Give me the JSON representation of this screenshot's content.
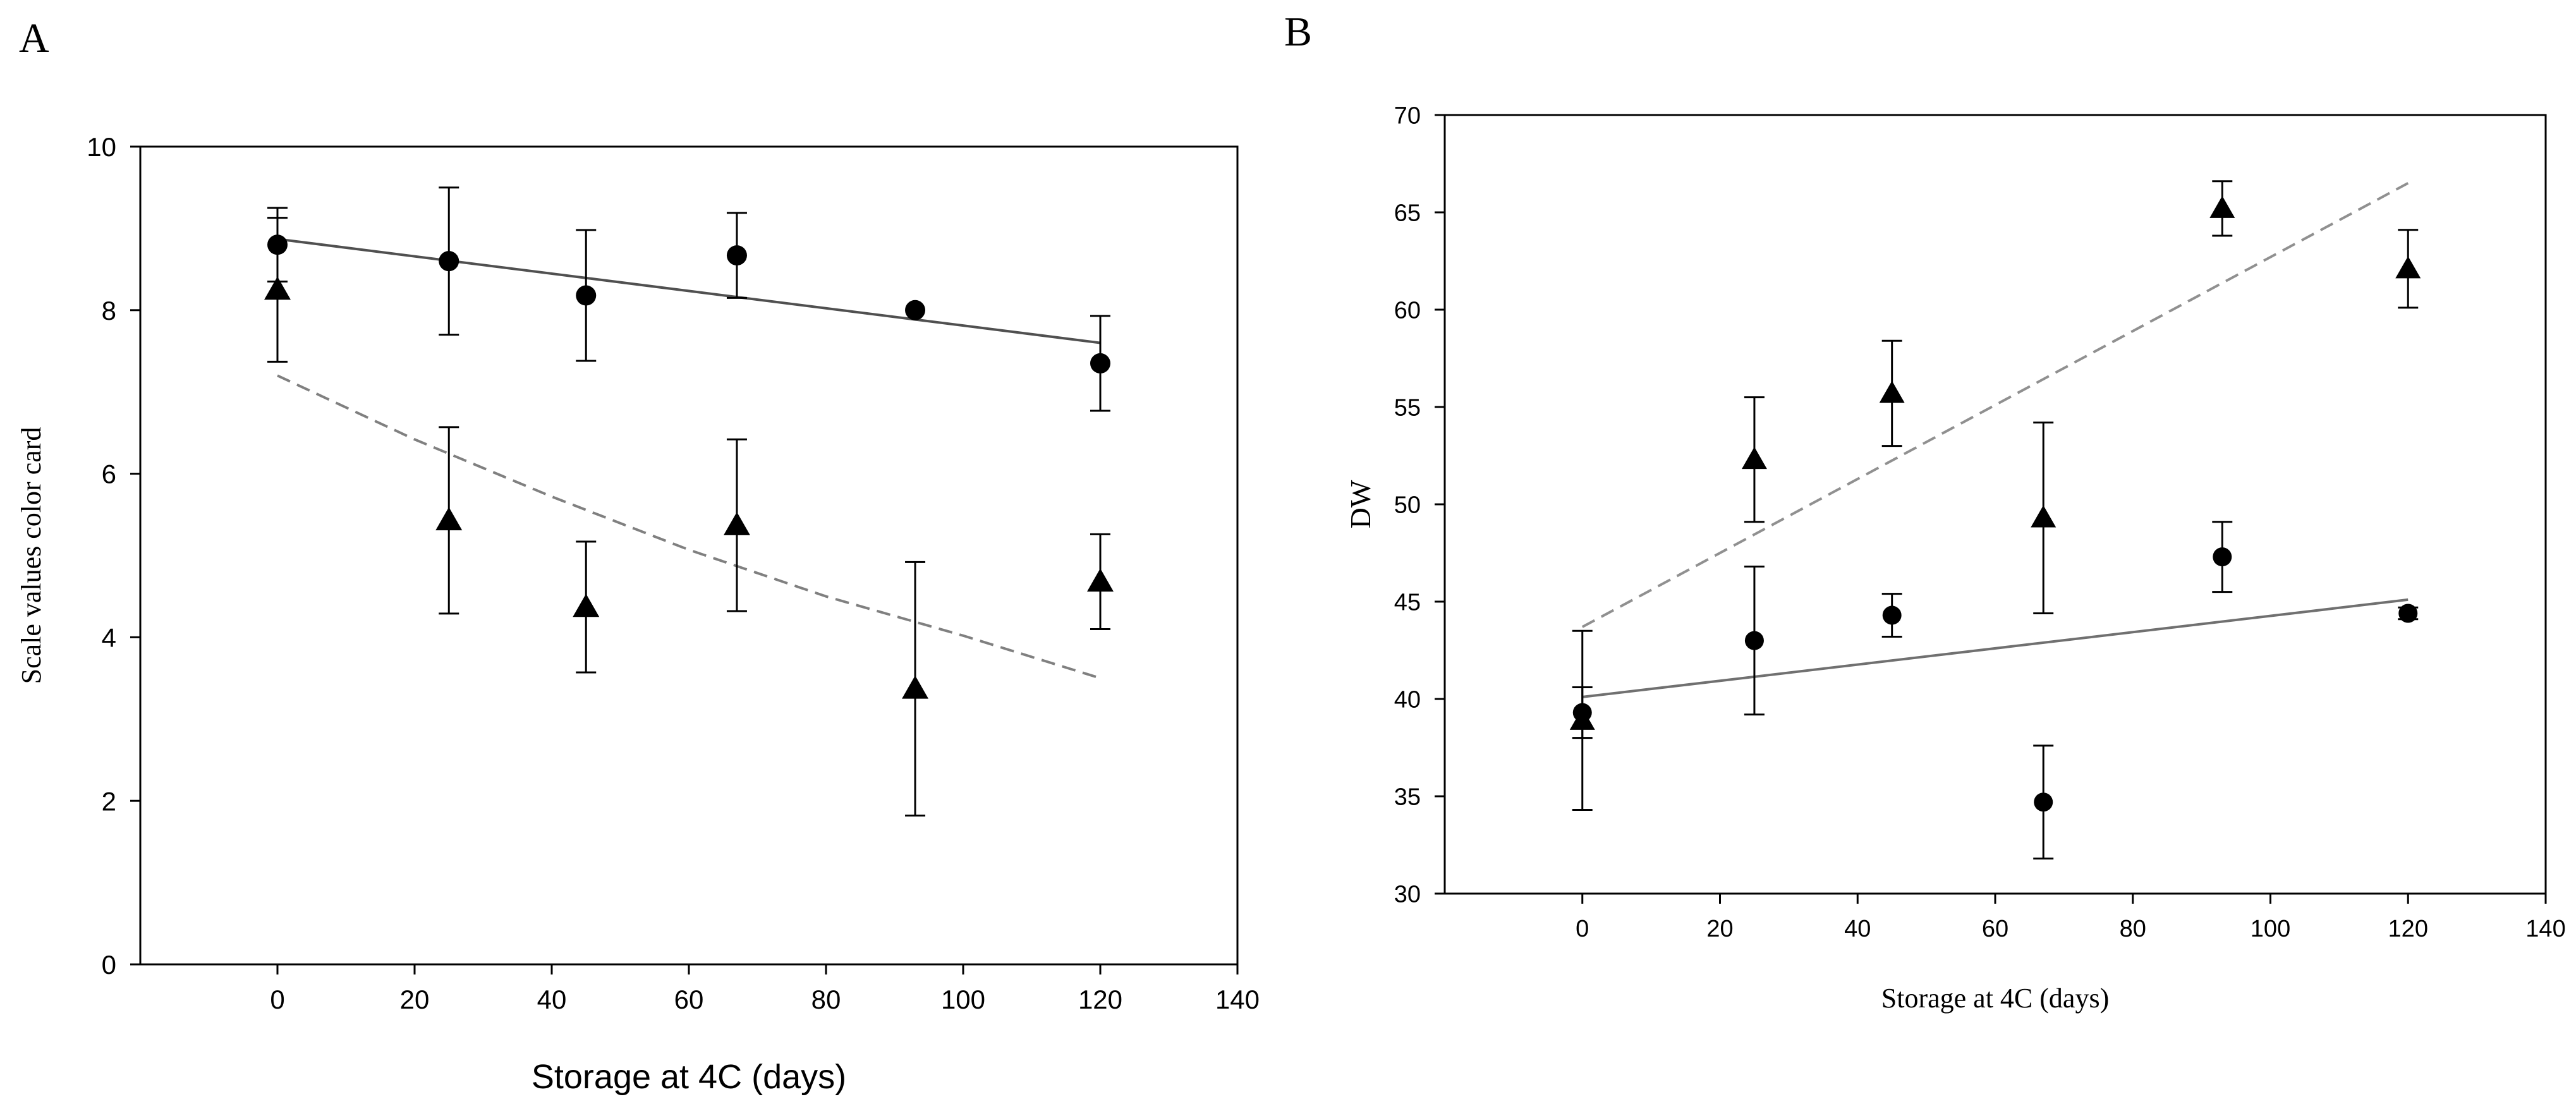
{
  "chart_data": [
    {
      "panel_label": "A",
      "type": "scatter",
      "title": "",
      "xlabel": "Storage at 4C (days)",
      "ylabel": "Scale values color card",
      "xlim": [
        -20,
        140
      ],
      "ylim": [
        0,
        10
      ],
      "xticks": [
        0,
        20,
        40,
        60,
        80,
        100,
        120,
        140
      ],
      "yticks": [
        0,
        2,
        4,
        6,
        8,
        10
      ],
      "grid": false,
      "series": [
        {
          "name": "circles",
          "marker": "circle",
          "x": [
            0,
            25,
            45,
            67,
            93,
            120
          ],
          "y": [
            8.8,
            8.6,
            8.18,
            8.67,
            8.0,
            7.35
          ],
          "err": [
            0.45,
            0.9,
            0.8,
            0.52,
            0.0,
            0.58
          ],
          "fit": {
            "type": "linear",
            "style": "solid",
            "color": "#505050",
            "x": [
              0,
              120
            ],
            "y": [
              8.87,
              7.6
            ]
          }
        },
        {
          "name": "triangles",
          "marker": "triangle",
          "x": [
            0,
            25,
            45,
            67,
            93,
            120
          ],
          "y": [
            8.25,
            5.43,
            4.37,
            5.37,
            3.37,
            4.68
          ],
          "err": [
            0.88,
            1.14,
            0.8,
            1.05,
            1.55,
            0.58
          ],
          "fit": {
            "type": "curve",
            "style": "dashed",
            "color": "#808080",
            "x": [
              0,
              20,
              40,
              60,
              80,
              100,
              120
            ],
            "y": [
              7.2,
              6.42,
              5.72,
              5.07,
              4.5,
              4.02,
              3.5
            ]
          }
        }
      ]
    },
    {
      "panel_label": "B",
      "type": "scatter",
      "title": "",
      "xlabel": "Storage at 4C (days)",
      "ylabel": "DW",
      "xlim": [
        -20,
        140
      ],
      "ylim": [
        30,
        70
      ],
      "xticks": [
        0,
        20,
        40,
        60,
        80,
        100,
        120,
        140
      ],
      "yticks": [
        30,
        35,
        40,
        45,
        50,
        55,
        60,
        65,
        70
      ],
      "grid": false,
      "series": [
        {
          "name": "circles",
          "marker": "circle",
          "x": [
            0,
            25,
            45,
            67,
            93,
            120
          ],
          "y": [
            39.3,
            43.0,
            44.3,
            34.7,
            47.3,
            44.4
          ],
          "err": [
            1.3,
            3.8,
            1.1,
            2.9,
            1.8,
            0.3
          ],
          "fit": {
            "type": "linear",
            "style": "solid",
            "color": "#707070",
            "x": [
              0,
              120
            ],
            "y": [
              40.1,
              45.1
            ]
          }
        },
        {
          "name": "triangles",
          "marker": "triangle",
          "x": [
            0,
            25,
            45,
            67,
            93,
            120
          ],
          "y": [
            38.9,
            52.3,
            55.7,
            49.3,
            65.2,
            62.1
          ],
          "err": [
            4.6,
            3.2,
            2.7,
            4.9,
            1.4,
            2.0
          ],
          "fit": {
            "type": "linear",
            "style": "dashed",
            "color": "#909090",
            "x": [
              0,
              120
            ],
            "y": [
              43.7,
              66.5
            ]
          }
        }
      ]
    }
  ]
}
